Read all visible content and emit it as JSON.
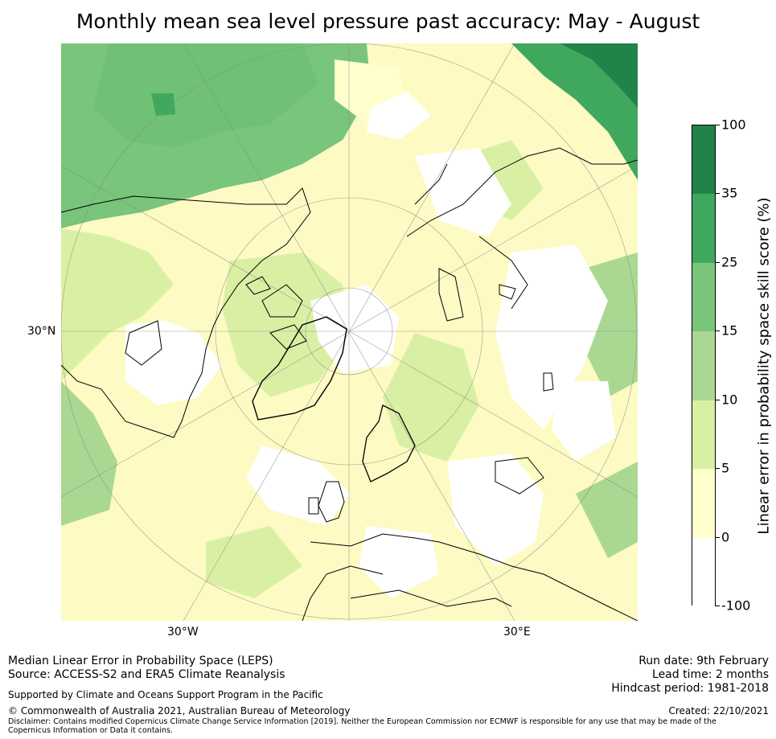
{
  "title": "Monthly mean sea level pressure past accuracy: May - August",
  "axis_labels": {
    "lat_30n": "30°N",
    "lon_30w": "30°W",
    "lon_30e": "30°E"
  },
  "colorbar": {
    "title": "Linear error in probability space skill score (%)",
    "ticks": [
      "100",
      "35",
      "25",
      "15",
      "10",
      "5",
      "0",
      "-100"
    ],
    "colors": [
      "#21834a",
      "#40a85d",
      "#79c57b",
      "#aad892",
      "#d9f0a4",
      "#ffffcc",
      "#ffffff"
    ]
  },
  "footer": {
    "left_line1": "Median Linear Error in Probability Space (LEPS)",
    "left_line2": "Source: ACCESS-S2 and ERA5 Climate Reanalysis",
    "support": "Supported by Climate and Oceans Support Program in the Pacific",
    "copyright": "© Commonwealth of Australia 2021, Australian Bureau of Meteorology",
    "disclaimer": "Disclaimer: Contains modified Copernicus Climate Change Service Information [2019]. Neither the European Commission nor ECMWF is responsible for any use that may be made of the Copernicus Information or Data it contains.",
    "run_date": "Run date: 9th February",
    "lead_time": "Lead time: 2 months",
    "hindcast": "Hindcast period: 1981-2018",
    "created": "Created: 22/10/2021"
  }
}
